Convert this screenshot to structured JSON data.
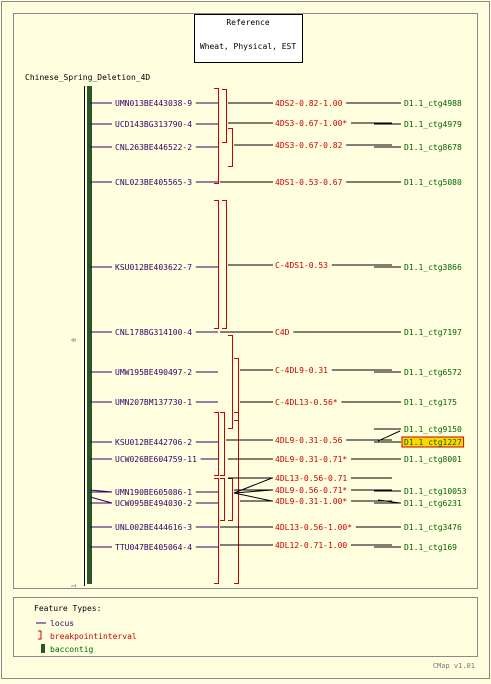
{
  "reference": {
    "line1": "Reference",
    "line2": "Wheat, Physical, EST"
  },
  "map_title": "Chinese_Spring_Deletion_4D",
  "ruler": {
    "start_label": "0",
    "end_label": "1"
  },
  "colors": {
    "background": "#ffffe0",
    "border": "#8b8b8b",
    "locus": "#330066",
    "breakpoint": "#cc0000",
    "contig": "#006600",
    "contig_bar": "#2b572b",
    "highlight_fill": "#ffd700",
    "highlight_border": "#cc0000"
  },
  "loci": [
    {
      "label": "UMN013BE443038-9"
    },
    {
      "label": "UCD143BG313790-4"
    },
    {
      "label": "CNL263BE446522-2"
    },
    {
      "label": "CNL023BE405565-3"
    },
    {
      "label": "KSU012BE403622-7"
    },
    {
      "label": "CNL178BG314100-4"
    },
    {
      "label": "UMW195BE490497-2"
    },
    {
      "label": "UMN207BM137730-1"
    },
    {
      "label": "KSU012BE442706-2"
    },
    {
      "label": "UCW026BE604759-11"
    },
    {
      "label": "UMN190BE605086-1"
    },
    {
      "label": "UCW095BE494030-2"
    },
    {
      "label": "UNL002BE444616-3"
    },
    {
      "label": "TTU047BE405064-4"
    }
  ],
  "breakpoints": [
    {
      "label": "4DS2-0.82-1.00"
    },
    {
      "label": "4DS3-0.67-1.00*"
    },
    {
      "label": "4DS3-0.67-0.82"
    },
    {
      "label": "4DS1-0.53-0.67"
    },
    {
      "label": "C-4DS1-0.53"
    },
    {
      "label": "C4D"
    },
    {
      "label": "C-4DL9-0.31"
    },
    {
      "label": "C-4DL13-0.56*"
    },
    {
      "label": "4DL9-0.31-0.56"
    },
    {
      "label": "4DL9-0.31-0.71*"
    },
    {
      "label": "4DL13-0.56-0.71"
    },
    {
      "label": "4DL9-0.56-0.71*"
    },
    {
      "label": "4DL9-0.31-1.00*"
    },
    {
      "label": "4DL13-0.56-1.00*"
    },
    {
      "label": "4DL12-0.71-1.00"
    }
  ],
  "contigs": [
    {
      "label": "D1.1_ctg4988"
    },
    {
      "label": "D1.1_ctg4979"
    },
    {
      "label": "D1.1_ctg8678"
    },
    {
      "label": "D1.1_ctg5080"
    },
    {
      "label": "D1.1_ctg3866"
    },
    {
      "label": "D1.1_ctg7197"
    },
    {
      "label": "D1.1_ctg6572"
    },
    {
      "label": "D1.1_ctg175"
    },
    {
      "label": "D1.1_ctg9150"
    },
    {
      "label": "D1.1_ctg1227",
      "highlighted": true
    },
    {
      "label": "D1.1_ctg8001"
    },
    {
      "label": "D1.1_ctg10053"
    },
    {
      "label": "D1.1_ctg6231"
    },
    {
      "label": "D1.1_ctg3476"
    },
    {
      "label": "D1.1_ctg169"
    }
  ],
  "legend": {
    "title": "Feature Types:",
    "items": [
      {
        "label": "locus",
        "glyph": "line"
      },
      {
        "label": "breakpointinterval",
        "glyph": "bracket"
      },
      {
        "label": "baccontig",
        "glyph": "bar"
      }
    ]
  },
  "footer": "CMap v1.01"
}
